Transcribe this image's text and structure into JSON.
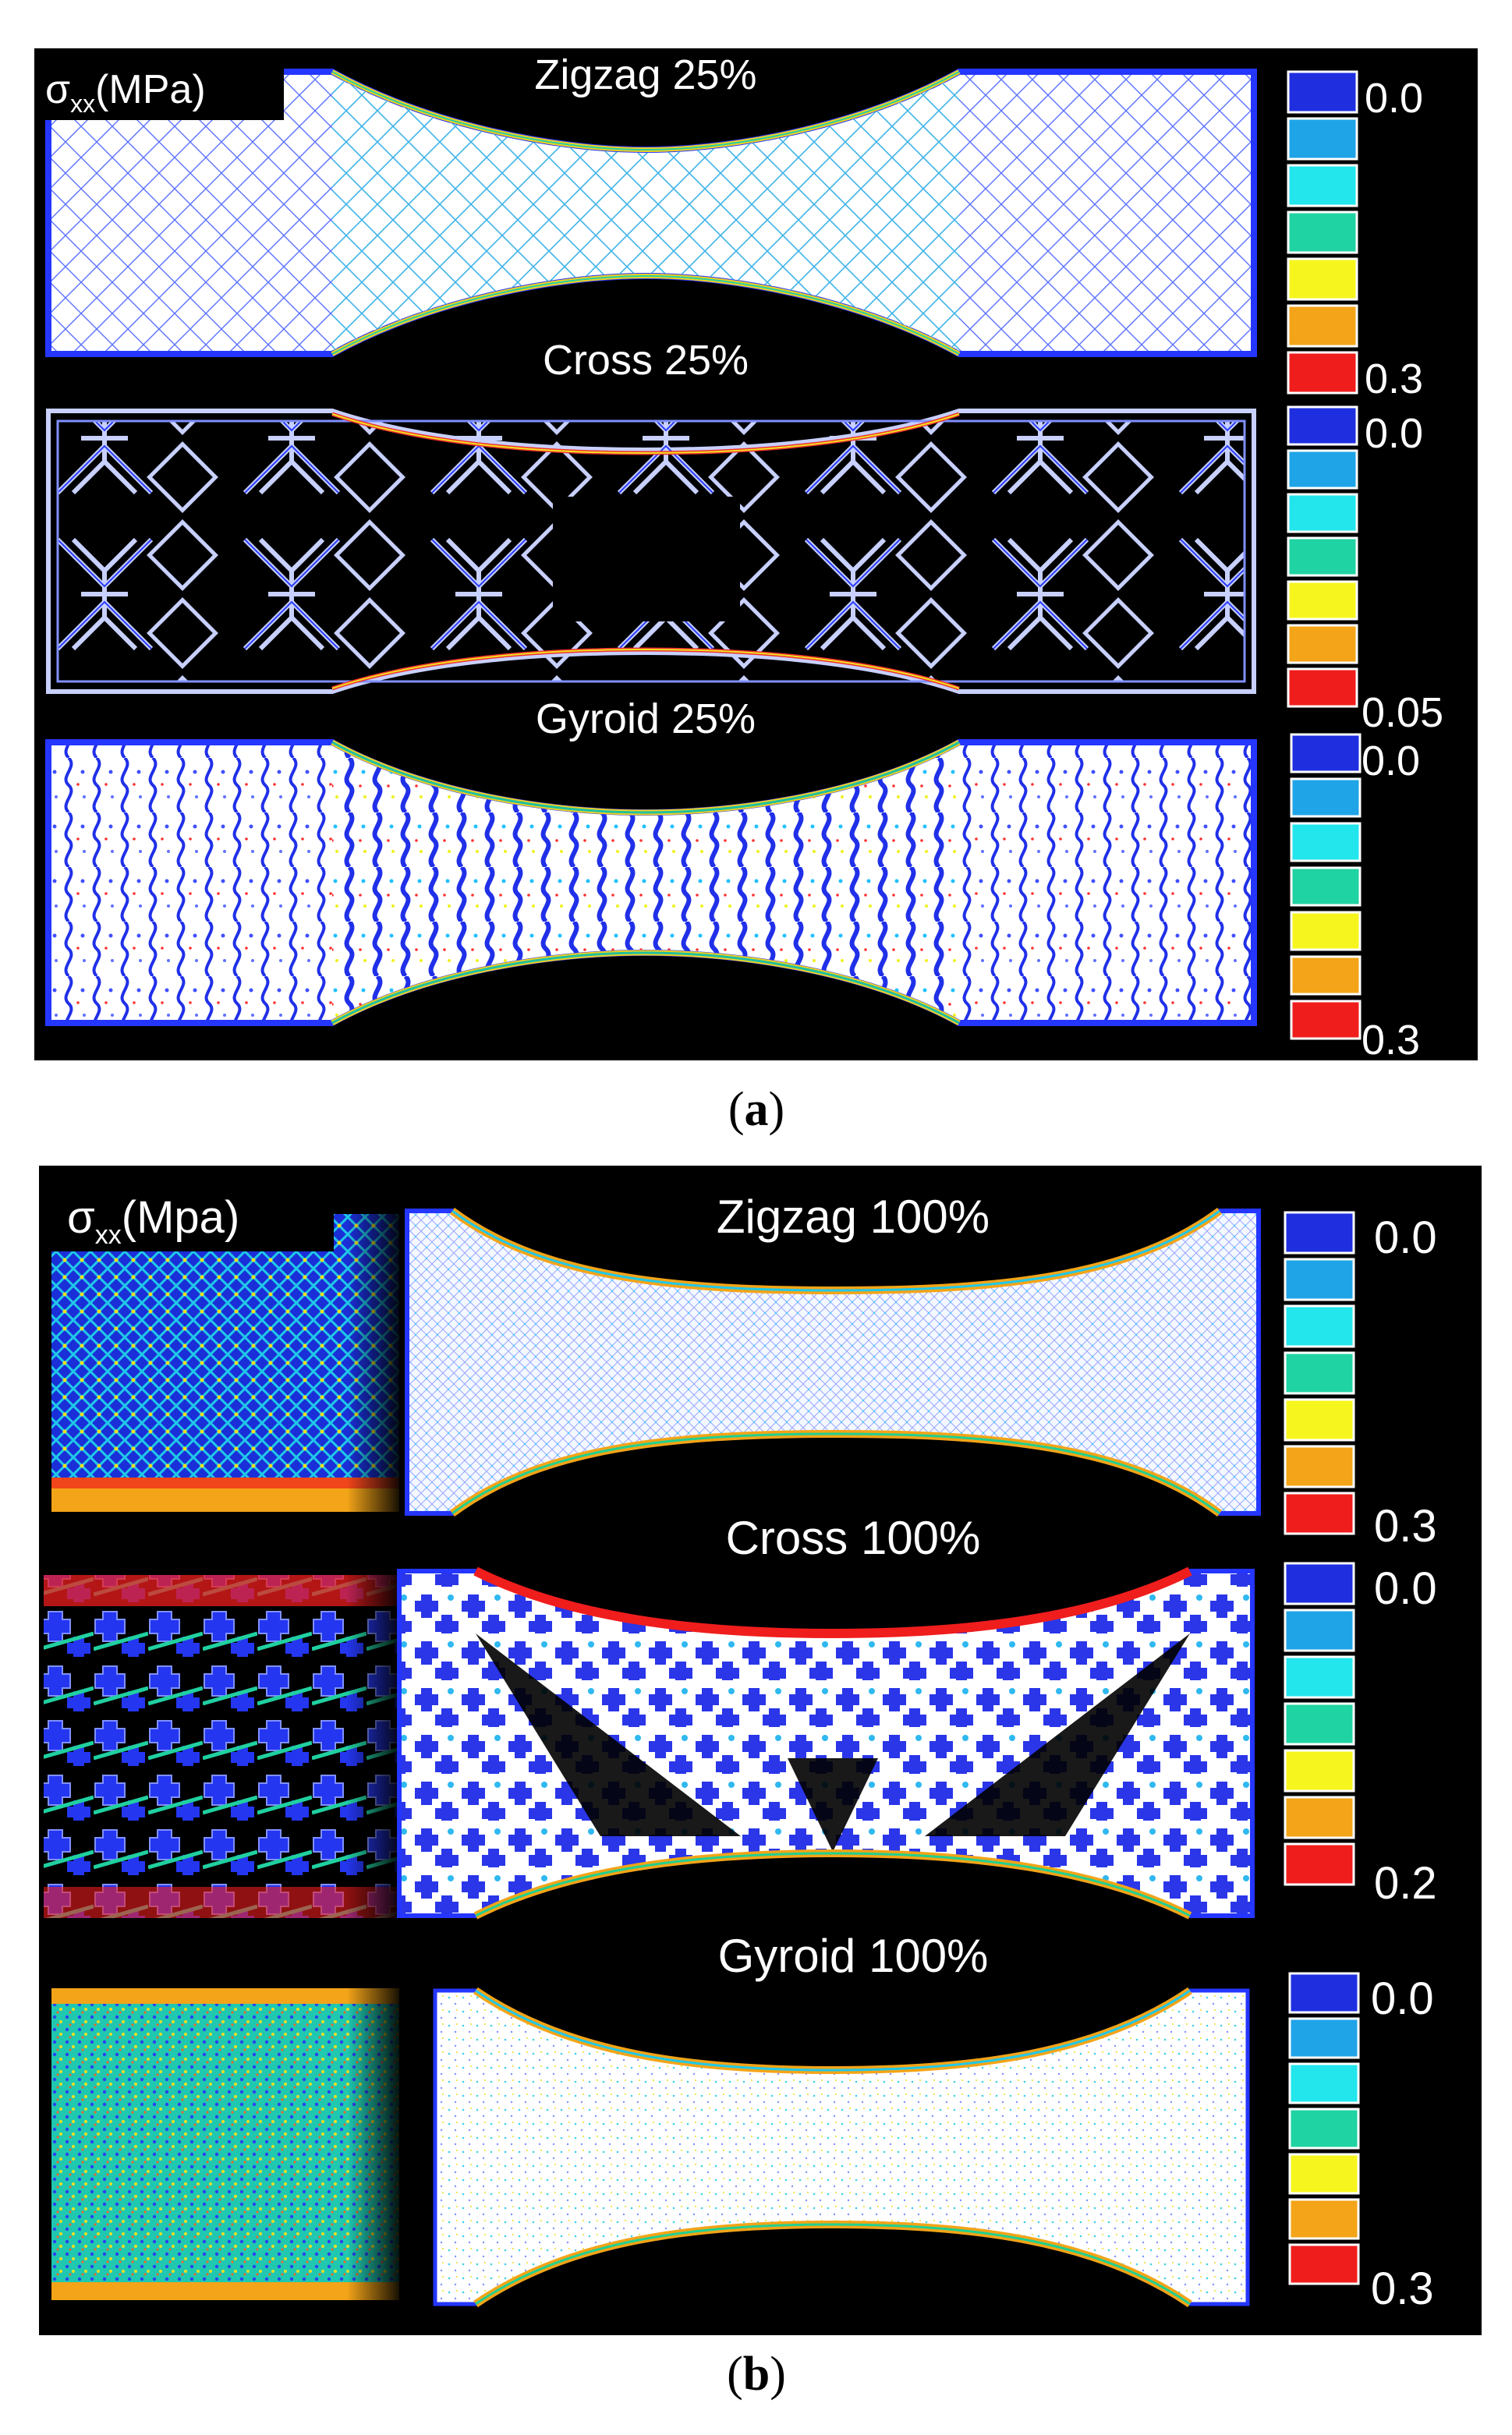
{
  "figure": {
    "caption_a": "a",
    "caption_b": "b",
    "colors": {
      "background": "#000000",
      "scale": [
        "#1f2fe0",
        "#1fa4e8",
        "#22e6ec",
        "#20d3a2",
        "#f6f61e",
        "#f3a418",
        "#f01d1d"
      ],
      "specimen_fill_dense": "#f4f8ff"
    }
  },
  "panel_a": {
    "stress_label": "σ",
    "stress_sub": "xx",
    "stress_unit": "(MPa)",
    "rows": [
      {
        "title": "Zigzag 25%",
        "scale_min": "0.0",
        "scale_max": "0.3",
        "pattern": "zigzag-lattice"
      },
      {
        "title": "Cross 25%",
        "scale_min": "0.0",
        "scale_max": "0.05",
        "pattern": "cross-infill"
      },
      {
        "title": "Gyroid 25%",
        "scale_min": "0.0",
        "scale_max": "0.3",
        "pattern": "gyroid-infill"
      }
    ]
  },
  "panel_b": {
    "stress_label": "σ",
    "stress_sub": "xx",
    "stress_unit": "(Mpa)",
    "rows": [
      {
        "title": "Zigzag 100%",
        "scale_min": "0.0",
        "scale_max": "0.3",
        "pattern": "zigzag-dense"
      },
      {
        "title": "Cross 100%",
        "scale_min": "0.0",
        "scale_max": "0.2",
        "pattern": "cross-dense"
      },
      {
        "title": "Gyroid 100%",
        "scale_min": "0.0",
        "scale_max": "0.3",
        "pattern": "gyroid-dense"
      }
    ]
  }
}
